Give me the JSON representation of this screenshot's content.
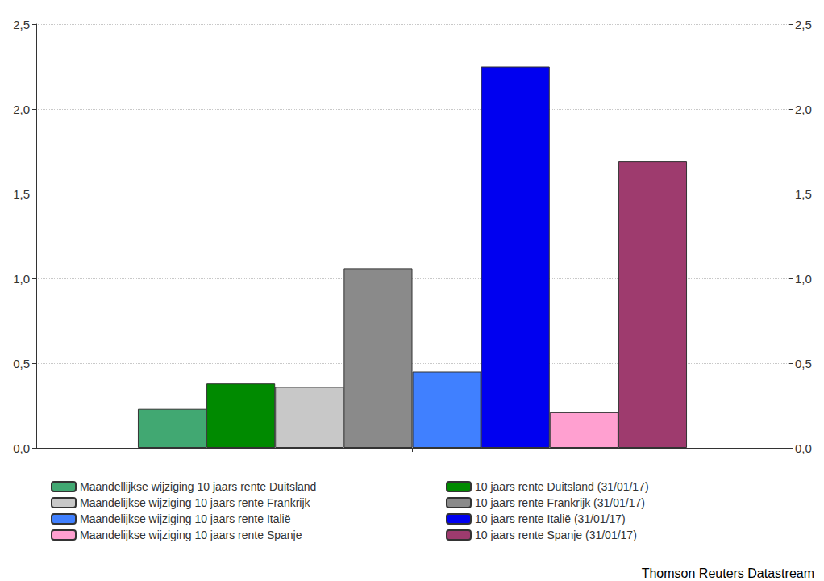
{
  "chart_data": {
    "type": "bar",
    "categories": [
      null
    ],
    "series": [
      {
        "name": "Maandellijkse wijziging 10 jaars rente Duitsland",
        "color": "#41a872",
        "values": [
          0.23
        ]
      },
      {
        "name": "10 jaars rente Duitsland (31/01/17)",
        "color": "#008a00",
        "values": [
          0.38
        ]
      },
      {
        "name": "Maandelijkse wijziging 10 jaars rente Frankrijk",
        "color": "#c8c8c8",
        "values": [
          0.36
        ]
      },
      {
        "name": "10 jaars rente Frankrijk (31/01/17)",
        "color": "#8a8a8a",
        "values": [
          1.06
        ]
      },
      {
        "name": "Maandelijkse wijziging 10 jaars rente Italië",
        "color": "#4080ff",
        "values": [
          0.45
        ]
      },
      {
        "name": "10 jaars rente Italië (31/01/17)",
        "color": "#0000f0",
        "values": [
          2.25
        ]
      },
      {
        "name": "Maandelijkse wijziging 10 jaars rente Spanje",
        "color": "#ffa0d0",
        "values": [
          0.21
        ]
      },
      {
        "name": "10 jaars rente Spanje (31/01/17)",
        "color": "#9e3b6e",
        "values": [
          1.69
        ]
      }
    ],
    "ylim": [
      0,
      2.5
    ],
    "yticks": [
      {
        "value": 0,
        "label": "0,0"
      },
      {
        "value": 0.5,
        "label": "0,5"
      },
      {
        "value": 1,
        "label": "1,0"
      },
      {
        "value": 1.5,
        "label": "1,5"
      },
      {
        "value": 2,
        "label": "2,0"
      },
      {
        "value": 2.5,
        "label": "2,5"
      }
    ],
    "y2lim": [
      0,
      2.5
    ],
    "y2ticks": [
      {
        "value": 0,
        "label": "0,0"
      },
      {
        "value": 0.5,
        "label": "0,5"
      },
      {
        "value": 1,
        "label": "1,0"
      },
      {
        "value": 1.5,
        "label": "1,5"
      },
      {
        "value": 2,
        "label": "2,0"
      },
      {
        "value": 2.5,
        "label": "2,5"
      }
    ],
    "grid": true,
    "legend": "bottom",
    "data_labels": false,
    "annotations": [
      "Thomson Reuters Datastream"
    ]
  }
}
